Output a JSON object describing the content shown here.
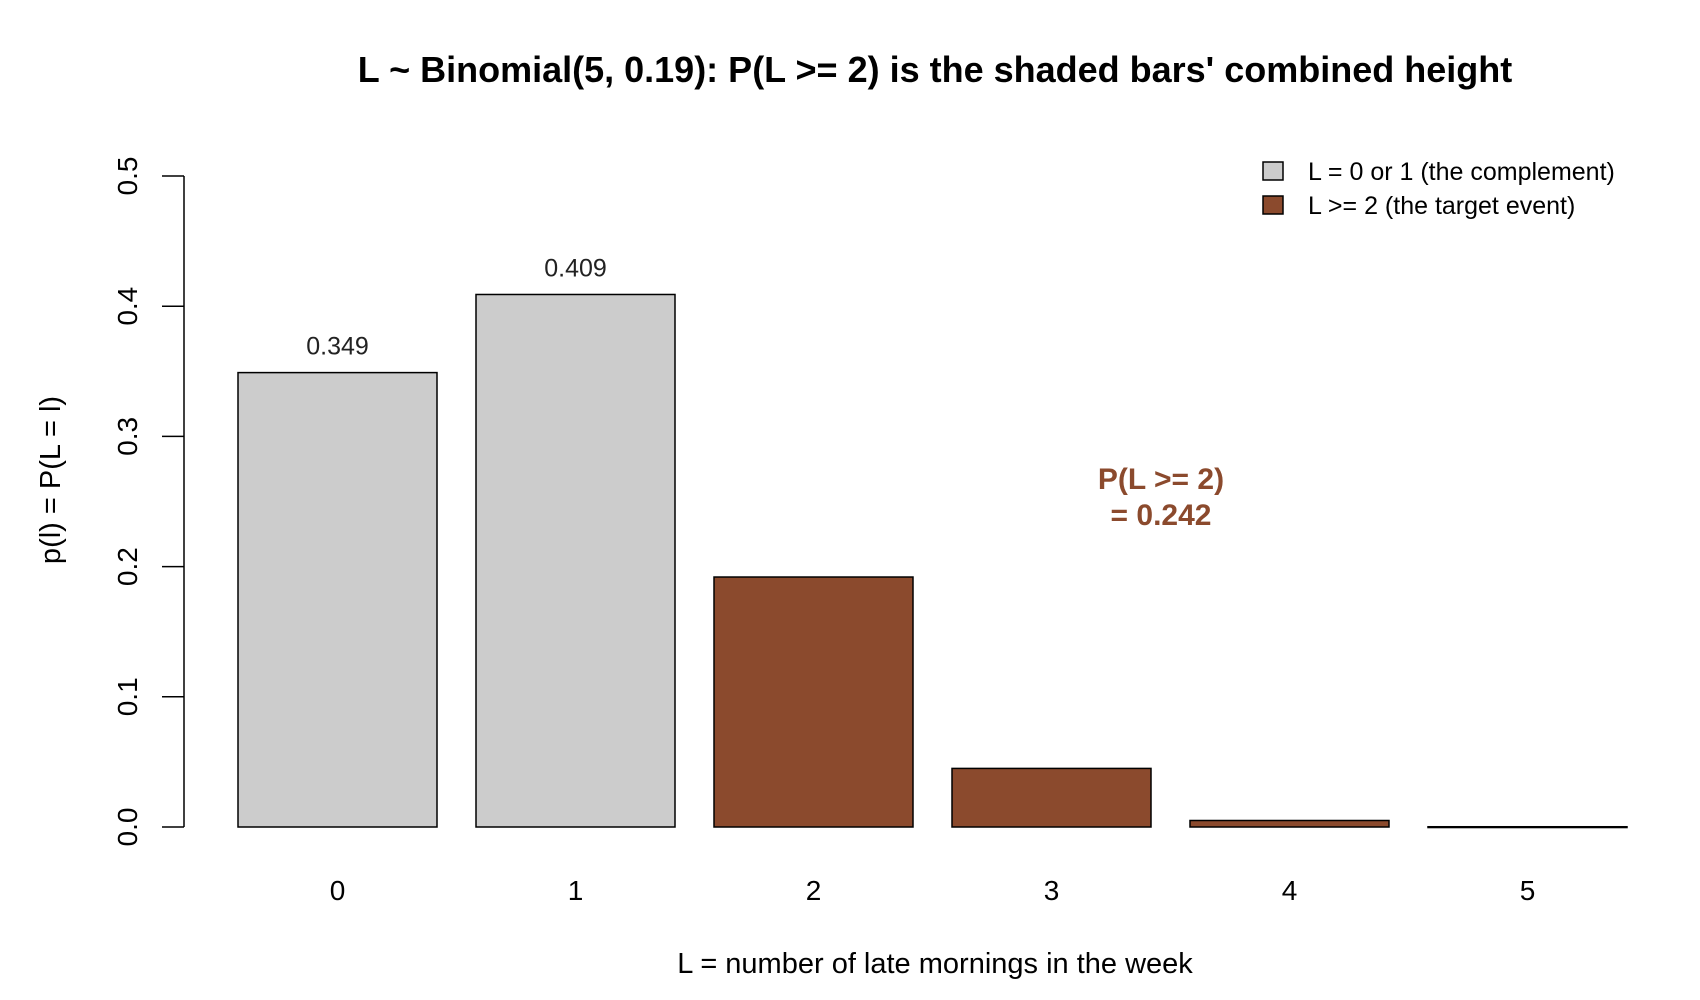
{
  "chart_data": {
    "type": "bar",
    "title": "L ~ Binomial(5, 0.19): P(L >= 2) is the shaded bars' combined height",
    "xlabel": "L = number of late mornings in the week",
    "ylabel": "p(l) = P(L = l)",
    "categories": [
      "0",
      "1",
      "2",
      "3",
      "4",
      "5"
    ],
    "values": [
      0.349,
      0.409,
      0.192,
      0.045,
      0.005,
      0.0002
    ],
    "bar_groups": [
      "complement",
      "complement",
      "target",
      "target",
      "target",
      "target"
    ],
    "data_labels": [
      "0.349",
      "0.409",
      "",
      "",
      "",
      ""
    ],
    "ylim": [
      0,
      0.5
    ],
    "yticks": [
      "0.0",
      "0.1",
      "0.2",
      "0.3",
      "0.4",
      "0.5"
    ],
    "grid": false,
    "legend": {
      "placement": "top-right",
      "entries": [
        {
          "label": "L = 0 or 1 (the complement)",
          "color": "#cccccc"
        },
        {
          "label": "L >= 2 (the target event)",
          "color": "#8b4a2d"
        }
      ]
    },
    "annotation": {
      "line1": "P(L >= 2)",
      "line2": "= 0.242",
      "color": "#8b4a2d"
    },
    "colors": {
      "complement": "#cccccc",
      "target": "#8b4a2d"
    }
  }
}
